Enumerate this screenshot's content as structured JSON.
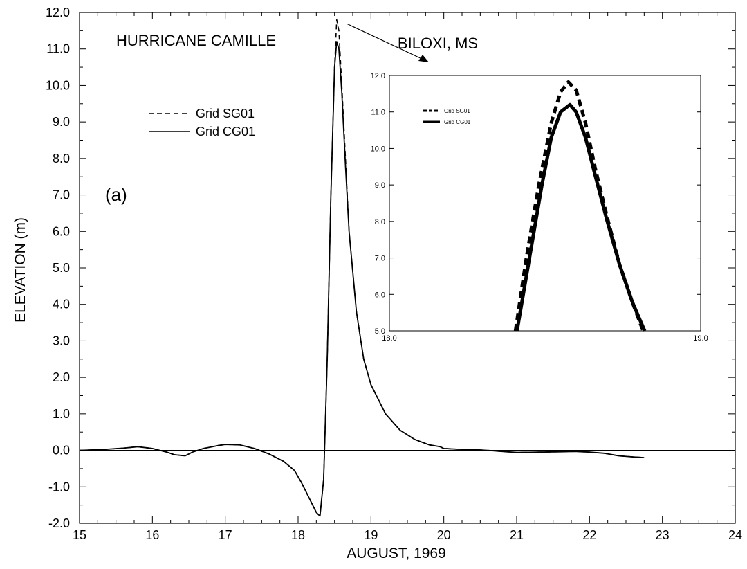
{
  "chart_data": [
    {
      "type": "line",
      "title": "HURRICANE CAMILLE",
      "panel_label": "(a)",
      "xlabel": "AUGUST, 1969",
      "ylabel": "ELEVATION (m)",
      "xlim": [
        15,
        24
      ],
      "ylim": [
        -2.0,
        12.0
      ],
      "xticks": [
        15,
        16,
        17,
        18,
        19,
        20,
        21,
        22,
        23,
        24
      ],
      "yticks": [
        "-2.0",
        "-1.0",
        "0.0",
        "1.0",
        "2.0",
        "3.0",
        "4.0",
        "5.0",
        "6.0",
        "7.0",
        "8.0",
        "9.0",
        "10.0",
        "11.0",
        "12.0"
      ],
      "zero_line": true,
      "grid": false,
      "legend": "upper-left",
      "series": [
        {
          "name": "Grid SG01",
          "style": "dashed",
          "x": [
            15.0,
            15.3,
            15.6,
            15.8,
            16.0,
            16.2,
            16.3,
            16.45,
            16.55,
            16.7,
            16.9,
            17.0,
            17.2,
            17.4,
            17.6,
            17.8,
            17.95,
            18.05,
            18.15,
            18.25,
            18.3,
            18.35,
            18.4,
            18.45,
            18.5,
            18.53,
            18.56,
            18.6,
            18.65,
            18.7,
            18.8,
            18.9,
            19.0,
            19.2,
            19.4,
            19.6,
            19.8,
            19.95,
            20.0,
            20.2,
            20.4,
            20.6,
            20.8,
            21.0,
            21.3,
            21.6,
            21.8,
            22.0,
            22.2,
            22.4,
            22.6,
            22.75
          ],
          "y": [
            0.0,
            0.02,
            0.06,
            0.1,
            0.05,
            -0.05,
            -0.12,
            -0.15,
            -0.05,
            0.05,
            0.13,
            0.16,
            0.15,
            0.05,
            -0.1,
            -0.3,
            -0.55,
            -0.9,
            -1.3,
            -1.7,
            -1.8,
            -0.8,
            2.5,
            7.0,
            10.5,
            11.8,
            11.5,
            10.0,
            8.0,
            6.0,
            3.8,
            2.5,
            1.8,
            1.0,
            0.55,
            0.3,
            0.15,
            0.1,
            0.05,
            0.03,
            0.02,
            0.0,
            -0.03,
            -0.06,
            -0.05,
            -0.04,
            -0.03,
            -0.05,
            -0.08,
            -0.15,
            -0.18,
            -0.2
          ]
        },
        {
          "name": "Grid CG01",
          "style": "solid",
          "x": [
            15.0,
            15.3,
            15.6,
            15.8,
            16.0,
            16.2,
            16.3,
            16.45,
            16.55,
            16.7,
            16.9,
            17.0,
            17.2,
            17.4,
            17.6,
            17.8,
            17.95,
            18.05,
            18.15,
            18.25,
            18.3,
            18.35,
            18.4,
            18.45,
            18.5,
            18.53,
            18.56,
            18.6,
            18.65,
            18.7,
            18.8,
            18.9,
            19.0,
            19.2,
            19.4,
            19.6,
            19.8,
            19.95,
            20.0,
            20.2,
            20.4,
            20.6,
            20.8,
            21.0,
            21.3,
            21.6,
            21.8,
            22.0,
            22.2,
            22.4,
            22.6,
            22.75
          ],
          "y": [
            0.0,
            0.02,
            0.06,
            0.1,
            0.05,
            -0.05,
            -0.12,
            -0.15,
            -0.05,
            0.05,
            0.13,
            0.16,
            0.15,
            0.05,
            -0.1,
            -0.3,
            -0.55,
            -0.9,
            -1.3,
            -1.7,
            -1.8,
            -0.8,
            2.5,
            7.0,
            10.5,
            11.2,
            11.0,
            9.8,
            7.8,
            6.0,
            3.8,
            2.5,
            1.8,
            1.0,
            0.55,
            0.3,
            0.15,
            0.1,
            0.05,
            0.03,
            0.02,
            0.0,
            -0.03,
            -0.06,
            -0.05,
            -0.04,
            -0.03,
            -0.05,
            -0.08,
            -0.15,
            -0.18,
            -0.2
          ]
        }
      ]
    },
    {
      "type": "line",
      "title": "BILOXI, MS",
      "xlim": [
        18.0,
        19.0
      ],
      "ylim": [
        5.0,
        12.0
      ],
      "xticks": [
        "18.0",
        "19.0"
      ],
      "yticks": [
        "5.0",
        "6.0",
        "7.0",
        "8.0",
        "9.0",
        "10.0",
        "11.0",
        "12.0"
      ],
      "grid": false,
      "legend": "upper-left",
      "series": [
        {
          "name": "Grid SG01",
          "style": "dashed",
          "x": [
            18.405,
            18.44,
            18.48,
            18.52,
            18.55,
            18.575,
            18.6,
            18.63,
            18.66,
            18.7,
            18.74,
            18.78,
            18.815
          ],
          "y": [
            5.0,
            7.0,
            9.0,
            10.7,
            11.55,
            11.82,
            11.6,
            10.7,
            9.5,
            8.1,
            6.8,
            5.8,
            5.0
          ]
        },
        {
          "name": "Grid CG01",
          "style": "solid",
          "x": [
            18.41,
            18.45,
            18.49,
            18.52,
            18.55,
            18.58,
            18.6,
            18.63,
            18.66,
            18.7,
            18.74,
            18.78,
            18.82
          ],
          "y": [
            5.0,
            7.0,
            9.0,
            10.3,
            11.0,
            11.2,
            11.0,
            10.3,
            9.3,
            8.0,
            6.8,
            5.8,
            5.0
          ]
        }
      ]
    }
  ]
}
